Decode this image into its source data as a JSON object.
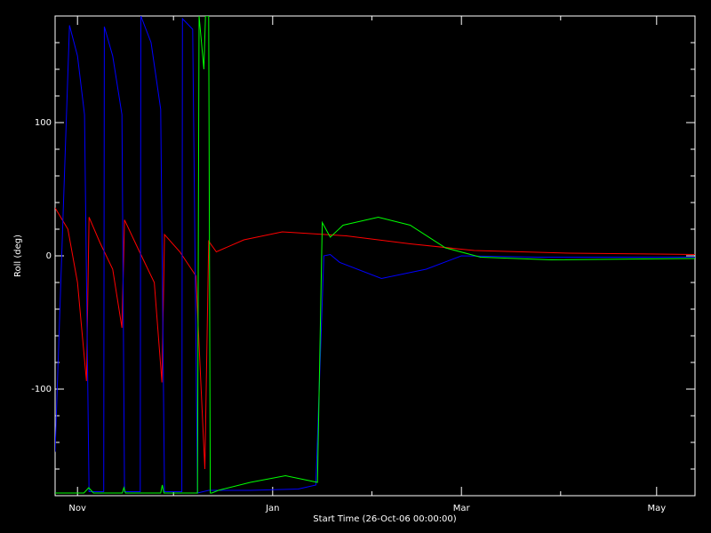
{
  "chart_data": {
    "type": "line",
    "xlabel": "Start Time (26-Oct-06 00:00:00)",
    "ylabel": "Roll (deg)",
    "xlim": [
      -1,
      199
    ],
    "ylim": [
      -180,
      180
    ],
    "xticks": [
      {
        "value": 6,
        "label": "Nov"
      },
      {
        "value": 67,
        "label": "Jan"
      },
      {
        "value": 126,
        "label": "Mar"
      },
      {
        "value": 187,
        "label": "May"
      }
    ],
    "xminorticks": [
      36,
      98,
      157
    ],
    "yticks": [
      -100,
      0,
      100
    ],
    "yminorticks": [
      -160,
      -140,
      -120,
      -80,
      -60,
      -40,
      -20,
      20,
      40,
      60,
      80,
      120,
      140,
      160
    ],
    "series": [
      {
        "color": "#ff0000",
        "x": [
          -1,
          3,
          6,
          8.8,
          9.6,
          13,
          17,
          19.9,
          20.7,
          25,
          30,
          32.4,
          33.2,
          38,
          43,
          45.8,
          47,
          49.4,
          58,
          70,
          90,
          110,
          130,
          160,
          199
        ],
        "values": [
          36,
          20,
          -20,
          -94,
          29,
          10,
          -10,
          -54,
          27,
          5,
          -20,
          -95,
          16,
          3,
          -15,
          -160,
          11,
          3,
          12,
          18,
          15,
          9,
          4,
          2,
          1
        ]
      },
      {
        "color": "#0000ff",
        "x": [
          -1,
          3.5,
          6,
          8.2,
          9.6,
          14.2,
          14.4,
          17,
          19.9,
          20.7,
          25.6,
          25.8,
          29,
          32,
          33.2,
          38.6,
          38.8,
          42,
          43.5,
          47,
          60,
          75,
          80.5,
          83,
          85,
          88,
          101,
          115,
          126,
          150,
          199
        ],
        "values": [
          -147,
          173,
          150,
          106,
          -177,
          -177,
          172,
          150,
          106,
          -177,
          -177,
          180,
          160,
          110,
          -177,
          -177,
          178,
          170,
          -178,
          -176,
          -176,
          -175,
          -172,
          0,
          1,
          -5,
          -17,
          -10,
          0,
          -1,
          -1
        ]
      },
      {
        "color": "#00ff00",
        "x": [
          -1,
          8,
          9.5,
          11,
          20,
          20.5,
          21,
          32,
          32.5,
          33,
          43.5,
          44,
          45.5,
          46,
          47,
          47.5,
          48,
          50,
          60,
          71,
          81,
          82.5,
          85,
          89,
          100,
          110,
          121,
          132,
          154,
          199
        ],
        "values": [
          -178,
          -178,
          -174,
          -178,
          -178,
          -174,
          -178,
          -178,
          -172,
          -178,
          -178,
          180,
          140,
          180,
          180,
          -178,
          -178,
          -176,
          -170,
          -165,
          -170,
          25,
          14,
          23,
          29,
          23,
          6,
          -1,
          -3,
          -2
        ]
      }
    ]
  }
}
